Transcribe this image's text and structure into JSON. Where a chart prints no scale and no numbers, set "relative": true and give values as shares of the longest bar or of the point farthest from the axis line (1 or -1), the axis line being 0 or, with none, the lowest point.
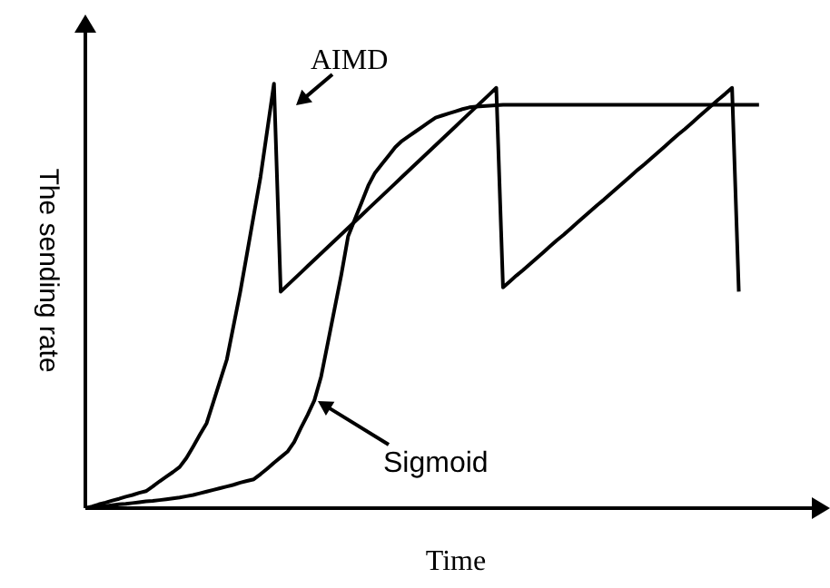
{
  "chart_data": {
    "type": "line",
    "relative": true,
    "xlabel": "Time",
    "ylabel": "The sending rate",
    "legend": false,
    "marker": "none",
    "line_style": "solid",
    "categories": [
      null,
      null,
      null,
      null,
      null,
      null,
      null,
      null,
      null,
      null,
      null,
      null,
      null,
      null,
      null,
      null,
      null,
      null,
      null,
      null,
      null,
      null,
      null,
      null,
      null,
      null,
      null,
      null,
      null,
      null,
      null,
      null,
      null,
      null,
      null,
      null,
      null,
      null,
      null,
      null,
      null,
      null,
      null,
      null,
      null,
      null,
      null,
      null,
      null,
      null,
      null,
      null,
      null,
      null,
      null,
      null,
      null,
      null,
      null,
      null,
      null,
      null,
      null,
      null,
      null,
      null,
      null,
      null,
      null,
      null,
      null,
      null,
      null,
      null,
      null,
      null,
      null,
      null,
      null,
      null,
      null,
      null,
      null,
      null,
      null,
      null,
      null,
      null,
      null,
      null,
      null,
      null,
      null,
      null,
      null,
      null,
      null,
      null,
      null,
      null,
      null
    ],
    "series": [
      {
        "name": "AIMD",
        "color": "#000000",
        "values": [
          0,
          0.004,
          0.009,
          0.013,
          0.018,
          0.022,
          0.027,
          0.031,
          0.036,
          0.04,
          0.051,
          0.063,
          0.074,
          0.085,
          0.097,
          0.118,
          0.145,
          0.173,
          0.2,
          0.25,
          0.3,
          0.35,
          0.43,
          0.51,
          0.6,
          0.69,
          0.78,
          0.89,
          1,
          0.51,
          0.525,
          0.54,
          0.555,
          0.57,
          0.585,
          0.6,
          0.615,
          0.63,
          0.645,
          0.66,
          0.675,
          0.69,
          0.705,
          0.72,
          0.735,
          0.75,
          0.765,
          0.78,
          0.795,
          0.81,
          0.825,
          0.84,
          0.855,
          0.87,
          0.885,
          0.9,
          0.915,
          0.93,
          0.945,
          0.96,
          0.975,
          0.99,
          0.52,
          0.534,
          0.548,
          0.561,
          0.575,
          0.589,
          0.603,
          0.617,
          0.631,
          0.644,
          0.658,
          0.672,
          0.686,
          0.7,
          0.714,
          0.727,
          0.741,
          0.755,
          0.769,
          0.783,
          0.797,
          0.81,
          0.824,
          0.838,
          0.852,
          0.866,
          0.88,
          0.893,
          0.907,
          0.921,
          0.935,
          0.949,
          0.963,
          0.976,
          0.99,
          0.51,
          null,
          null,
          null
        ]
      },
      {
        "name": "Sigmoid",
        "color": "#000000",
        "values": [
          0,
          0.002,
          0.003,
          0.005,
          0.007,
          0.009,
          0.01,
          0.012,
          0.014,
          0.016,
          0.017,
          0.019,
          0.021,
          0.023,
          0.025,
          0.028,
          0.031,
          0.035,
          0.039,
          0.043,
          0.047,
          0.051,
          0.055,
          0.06,
          0.064,
          0.068,
          0.08,
          0.093,
          0.107,
          0.12,
          0.133,
          0.156,
          0.189,
          0.22,
          0.254,
          0.31,
          0.39,
          0.47,
          0.55,
          0.64,
          0.68,
          0.72,
          0.76,
          0.79,
          0.81,
          0.83,
          0.85,
          0.865,
          0.876,
          0.887,
          0.898,
          0.909,
          0.92,
          0.925,
          0.93,
          0.935,
          0.94,
          0.944,
          0.946,
          0.947,
          0.948,
          0.949,
          0.95,
          0.95,
          0.95,
          0.95,
          0.95,
          0.95,
          0.95,
          0.95,
          0.95,
          0.95,
          0.95,
          0.95,
          0.95,
          0.95,
          0.95,
          0.95,
          0.95,
          0.95,
          0.95,
          0.95,
          0.95,
          0.95,
          0.95,
          0.95,
          0.95,
          0.95,
          0.95,
          0.95,
          0.95,
          0.95,
          0.95,
          0.95,
          0.95,
          0.95,
          0.95,
          0.95,
          0.95,
          0.95,
          0.95
        ]
      }
    ]
  }
}
